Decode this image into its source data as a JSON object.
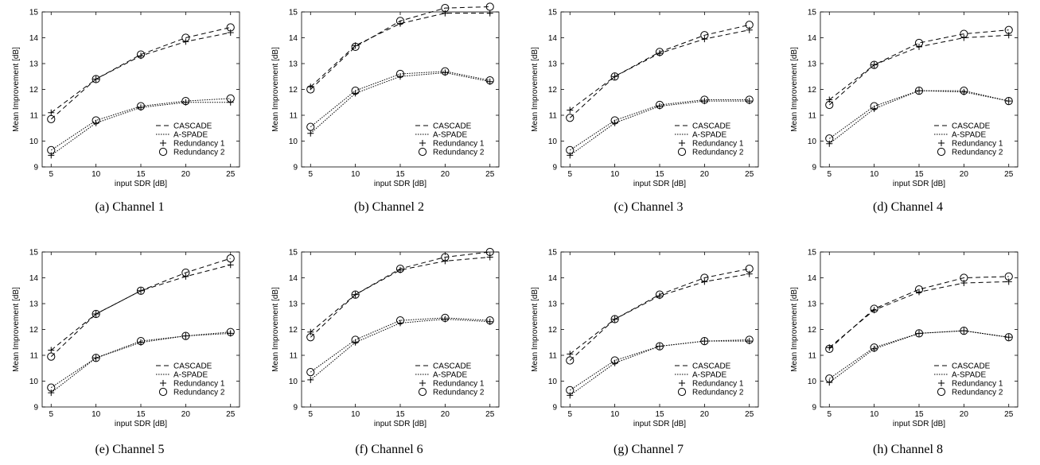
{
  "legend": [
    "CASCADE",
    "A-SPADE",
    "Redundancy 1",
    "Redundancy 2"
  ],
  "chart_data": [
    {
      "type": "line",
      "caption": "(a) Channel 1",
      "xlabel": "input SDR [dB]",
      "ylabel": "Mean Improvement [dB]",
      "x": [
        5,
        10,
        15,
        20,
        25
      ],
      "xlim": [
        4,
        26
      ],
      "ylim": [
        9,
        15
      ],
      "xticks": [
        5,
        10,
        15,
        20,
        25
      ],
      "yticks": [
        9,
        10,
        11,
        12,
        13,
        14,
        15
      ],
      "legend_position": "lower-right",
      "series": [
        {
          "name": "CASCADE / Redundancy 1",
          "values": [
            11.1,
            12.4,
            13.3,
            13.85,
            14.2
          ]
        },
        {
          "name": "CASCADE / Redundancy 2",
          "values": [
            10.85,
            12.4,
            13.35,
            14.0,
            14.4
          ]
        },
        {
          "name": "A-SPADE / Redundancy 1",
          "values": [
            9.45,
            10.7,
            11.3,
            11.5,
            11.5
          ]
        },
        {
          "name": "A-SPADE / Redundancy 2",
          "values": [
            9.65,
            10.8,
            11.35,
            11.55,
            11.65
          ]
        }
      ]
    },
    {
      "type": "line",
      "caption": "(b) Channel 2",
      "xlabel": "input SDR [dB]",
      "ylabel": "Mean Improvement [dB]",
      "x": [
        5,
        10,
        15,
        20,
        25
      ],
      "xlim": [
        4,
        26
      ],
      "ylim": [
        9,
        15
      ],
      "xticks": [
        5,
        10,
        15,
        20,
        25
      ],
      "yticks": [
        9,
        10,
        11,
        12,
        13,
        14,
        15
      ],
      "legend_position": "lower-right",
      "series": [
        {
          "name": "CASCADE / Redundancy 1",
          "values": [
            12.1,
            13.7,
            14.55,
            14.95,
            14.95
          ]
        },
        {
          "name": "CASCADE / Redundancy 2",
          "values": [
            12.0,
            13.65,
            14.65,
            15.15,
            15.2
          ]
        },
        {
          "name": "A-SPADE / Redundancy 1",
          "values": [
            10.3,
            11.85,
            12.5,
            12.65,
            12.3
          ]
        },
        {
          "name": "A-SPADE / Redundancy 2",
          "values": [
            10.55,
            11.95,
            12.6,
            12.7,
            12.35
          ]
        }
      ]
    },
    {
      "type": "line",
      "caption": "(c) Channel 3",
      "xlabel": "input SDR [dB]",
      "ylabel": "Mean Improvement [dB]",
      "x": [
        5,
        10,
        15,
        20,
        25
      ],
      "xlim": [
        4,
        26
      ],
      "ylim": [
        9,
        15
      ],
      "xticks": [
        5,
        10,
        15,
        20,
        25
      ],
      "yticks": [
        9,
        10,
        11,
        12,
        13,
        14,
        15
      ],
      "legend_position": "lower-right",
      "series": [
        {
          "name": "CASCADE / Redundancy 1",
          "values": [
            11.2,
            12.5,
            13.4,
            13.95,
            14.3
          ]
        },
        {
          "name": "CASCADE / Redundancy 2",
          "values": [
            10.9,
            12.5,
            13.45,
            14.1,
            14.5
          ]
        },
        {
          "name": "A-SPADE / Redundancy 1",
          "values": [
            9.45,
            10.7,
            11.35,
            11.55,
            11.55
          ]
        },
        {
          "name": "A-SPADE / Redundancy 2",
          "values": [
            9.65,
            10.8,
            11.4,
            11.6,
            11.6
          ]
        }
      ]
    },
    {
      "type": "line",
      "caption": "(d) Channel 4",
      "xlabel": "input SDR [dB]",
      "ylabel": "Mean Improvement [dB]",
      "x": [
        5,
        10,
        15,
        20,
        25
      ],
      "xlim": [
        4,
        26
      ],
      "ylim": [
        9,
        15
      ],
      "xticks": [
        5,
        10,
        15,
        20,
        25
      ],
      "yticks": [
        9,
        10,
        11,
        12,
        13,
        14,
        15
      ],
      "legend_position": "lower-right",
      "series": [
        {
          "name": "CASCADE / Redundancy 1",
          "values": [
            11.6,
            12.95,
            13.65,
            14.0,
            14.1
          ]
        },
        {
          "name": "CASCADE / Redundancy 2",
          "values": [
            11.4,
            12.95,
            13.8,
            14.15,
            14.3
          ]
        },
        {
          "name": "A-SPADE / Redundancy 1",
          "values": [
            9.9,
            11.25,
            11.95,
            11.9,
            11.55
          ]
        },
        {
          "name": "A-SPADE / Redundancy 2",
          "values": [
            10.1,
            11.35,
            11.95,
            11.95,
            11.55
          ]
        }
      ]
    },
    {
      "type": "line",
      "caption": "(e) Channel 5",
      "xlabel": "input SDR [dB]",
      "ylabel": "Mean Improvement [dB]",
      "x": [
        5,
        10,
        15,
        20,
        25
      ],
      "xlim": [
        4,
        26
      ],
      "ylim": [
        9,
        15
      ],
      "xticks": [
        5,
        10,
        15,
        20,
        25
      ],
      "yticks": [
        9,
        10,
        11,
        12,
        13,
        14,
        15
      ],
      "legend_position": "lower-right",
      "series": [
        {
          "name": "CASCADE / Redundancy 1",
          "values": [
            11.2,
            12.6,
            13.5,
            14.05,
            14.5
          ]
        },
        {
          "name": "CASCADE / Redundancy 2",
          "values": [
            10.95,
            12.6,
            13.5,
            14.2,
            14.75
          ]
        },
        {
          "name": "A-SPADE / Redundancy 1",
          "values": [
            9.55,
            10.9,
            11.5,
            11.75,
            11.85
          ]
        },
        {
          "name": "A-SPADE / Redundancy 2",
          "values": [
            9.75,
            10.9,
            11.55,
            11.75,
            11.9
          ]
        }
      ]
    },
    {
      "type": "line",
      "caption": "(f) Channel 6",
      "xlabel": "input SDR [dB]",
      "ylabel": "Mean Improvement [dB]",
      "x": [
        5,
        10,
        15,
        20,
        25
      ],
      "xlim": [
        4,
        26
      ],
      "ylim": [
        9,
        15
      ],
      "xticks": [
        5,
        10,
        15,
        20,
        25
      ],
      "yticks": [
        9,
        10,
        11,
        12,
        13,
        14,
        15
      ],
      "legend_position": "lower-right",
      "series": [
        {
          "name": "CASCADE / Redundancy 1",
          "values": [
            11.9,
            13.35,
            14.3,
            14.65,
            14.8
          ]
        },
        {
          "name": "CASCADE / Redundancy 2",
          "values": [
            11.7,
            13.35,
            14.35,
            14.8,
            15.0
          ]
        },
        {
          "name": "A-SPADE / Redundancy 1",
          "values": [
            10.05,
            11.5,
            12.25,
            12.4,
            12.3
          ]
        },
        {
          "name": "A-SPADE / Redundancy 2",
          "values": [
            10.35,
            11.6,
            12.35,
            12.45,
            12.35
          ]
        }
      ]
    },
    {
      "type": "line",
      "caption": "(g) Channel 7",
      "xlabel": "input SDR [dB]",
      "ylabel": "Mean Improvement [dB]",
      "x": [
        5,
        10,
        15,
        20,
        25
      ],
      "xlim": [
        4,
        26
      ],
      "ylim": [
        9,
        15
      ],
      "xticks": [
        5,
        10,
        15,
        20,
        25
      ],
      "yticks": [
        9,
        10,
        11,
        12,
        13,
        14,
        15
      ],
      "legend_position": "lower-right",
      "series": [
        {
          "name": "CASCADE / Redundancy 1",
          "values": [
            11.05,
            12.4,
            13.3,
            13.85,
            14.15
          ]
        },
        {
          "name": "CASCADE / Redundancy 2",
          "values": [
            10.8,
            12.4,
            13.35,
            14.0,
            14.35
          ]
        },
        {
          "name": "A-SPADE / Redundancy 1",
          "values": [
            9.45,
            10.7,
            11.35,
            11.55,
            11.55
          ]
        },
        {
          "name": "A-SPADE / Redundancy 2",
          "values": [
            9.65,
            10.8,
            11.35,
            11.55,
            11.6
          ]
        }
      ]
    },
    {
      "type": "line",
      "caption": "(h) Channel 8",
      "xlabel": "input SDR [dB]",
      "ylabel": "Mean Improvement [dB]",
      "x": [
        5,
        10,
        15,
        20,
        25
      ],
      "xlim": [
        4,
        26
      ],
      "ylim": [
        9,
        15
      ],
      "xticks": [
        5,
        10,
        15,
        20,
        25
      ],
      "yticks": [
        9,
        10,
        11,
        12,
        13,
        14,
        15
      ],
      "legend_position": "lower-right",
      "series": [
        {
          "name": "CASCADE / Redundancy 1",
          "values": [
            11.3,
            12.75,
            13.45,
            13.8,
            13.85
          ]
        },
        {
          "name": "CASCADE / Redundancy 2",
          "values": [
            11.25,
            12.8,
            13.55,
            14.0,
            14.05
          ]
        },
        {
          "name": "A-SPADE / Redundancy 1",
          "values": [
            9.95,
            11.25,
            11.85,
            11.95,
            11.7
          ]
        },
        {
          "name": "A-SPADE / Redundancy 2",
          "values": [
            10.1,
            11.3,
            11.85,
            11.95,
            11.7
          ]
        }
      ]
    }
  ]
}
